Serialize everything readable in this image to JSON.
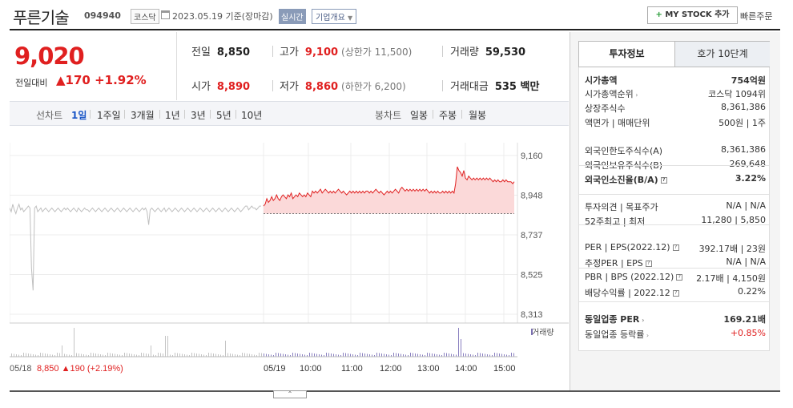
{
  "header": {
    "name": "푸른기술",
    "code": "094940",
    "market": "코스닥",
    "date": "2023.05.19 기준(장마감)",
    "live": "실시간",
    "corp_info": "기업개요",
    "mystock": "MY STOCK 추가",
    "quick": "빠른주문"
  },
  "price": {
    "now": "9,020",
    "change_label": "전일대비",
    "change": "▲170",
    "rate": "+1.92%"
  },
  "quote": {
    "prev_label": "전일",
    "prev": "8,850",
    "high_label": "고가",
    "high": "9,100",
    "high_limit": "(상한가 11,500)",
    "volume_label": "거래량",
    "volume": "59,530",
    "open_label": "시가",
    "open": "8,890",
    "low_label": "저가",
    "low": "8,860",
    "low_limit": "(하한가 6,200)",
    "amount_label": "거래대금",
    "amount": "535 백만"
  },
  "periods": {
    "line_label": "선차트",
    "items": [
      "1일",
      "1주일",
      "3개월",
      "1년",
      "3년",
      "5년",
      "10년"
    ],
    "selected": "1일",
    "candle_label": "봉차트",
    "candle_items": [
      "일봉",
      "주봉",
      "월봉"
    ]
  },
  "chart_data": {
    "type": "line",
    "y_ticks": [
      "9,160",
      "8,948",
      "8,737",
      "8,525",
      "8,313"
    ],
    "ylim": [
      8313,
      9160
    ],
    "baseline": 8850,
    "x_ticks": [
      "05/19",
      "10:00",
      "11:00",
      "12:00",
      "13:00",
      "14:00",
      "15:00"
    ],
    "prev_label": "05/18",
    "prev_summary": "8,850 ▲190 (+2.19%)",
    "volume_label": "거래량",
    "prev_series": [
      8880,
      8860,
      8900,
      8870,
      8850,
      8880,
      8900,
      8870,
      8880,
      8860,
      8870,
      8880,
      8890,
      8880,
      8560,
      8440,
      8880,
      8890,
      8860,
      8870,
      8880,
      8860,
      8870,
      8880,
      8870,
      8860,
      8870,
      8880,
      8870,
      8860,
      8870,
      8880,
      8870,
      8860,
      8870,
      8880,
      8870,
      8880,
      8870,
      8860,
      8870,
      8880,
      8870,
      8860,
      8880,
      8870,
      8860,
      8870,
      8880,
      8870,
      8870,
      8860,
      8870,
      8880,
      8870,
      8860,
      8870,
      8880,
      8870,
      8860,
      8870,
      8880,
      8870,
      8860,
      8870,
      8880,
      8870,
      8860,
      8870,
      8880,
      8870,
      8860,
      8870,
      8880,
      8870,
      8860,
      8870,
      8880,
      8870,
      8860,
      8870,
      8880,
      8870,
      8860,
      8870,
      8880,
      8870,
      8880,
      8860,
      8790,
      8870,
      8880,
      8870,
      8860,
      8870,
      8880,
      8870,
      8860,
      8870,
      8880,
      8860,
      8870,
      8880,
      8870,
      8860,
      8870,
      8880,
      8870,
      8860,
      8870,
      8880,
      8870,
      8860,
      8870,
      8880,
      8870,
      8860,
      8870,
      8880,
      8870,
      8860,
      8870,
      8880,
      8870,
      8860,
      8870,
      8880,
      8870,
      8860,
      8870,
      8880,
      8870,
      8860,
      8870,
      8880,
      8870,
      8860,
      8870,
      8880,
      8870,
      8860,
      8870,
      8880,
      8870,
      8860,
      8870,
      8880,
      8870,
      8860,
      8870,
      8880,
      8890,
      8890,
      8870,
      8880,
      8890,
      8880,
      8880,
      8870,
      8880,
      8890,
      8890
    ],
    "today_series": [
      8890,
      8900,
      8930,
      8910,
      8920,
      8940,
      8920,
      8930,
      8950,
      8930,
      8920,
      8940,
      8950,
      8940,
      8930,
      8950,
      8940,
      8960,
      8930,
      8940,
      8950,
      8940,
      8960,
      8950,
      8940,
      8950,
      8940,
      8960,
      8950,
      8940,
      8970,
      8960,
      8970,
      8960,
      8970,
      8980,
      8960,
      8970,
      8980,
      8970,
      8960,
      8970,
      8960,
      8970,
      8960,
      8970,
      8980,
      8970,
      8960,
      8970,
      8960,
      8950,
      8960,
      8970,
      8960,
      8970,
      8960,
      8970,
      8960,
      8970,
      8960,
      8970,
      8960,
      8970,
      8970,
      8960,
      8970,
      8960,
      8970,
      8980,
      8970,
      8960,
      8970,
      8960,
      8950,
      8960,
      8970,
      8960,
      8970,
      8960,
      8970,
      8980,
      8970,
      8960,
      8980,
      8990,
      8980,
      8970,
      8980,
      8970,
      8980,
      8970,
      8980,
      8970,
      8980,
      8970,
      8980,
      8970,
      8980,
      8970,
      8980,
      8970,
      8960,
      8970,
      8960,
      8970,
      8960,
      8970,
      8960,
      8960,
      8970,
      8960,
      8970,
      8960,
      8970,
      8960,
      8970,
      8960,
      9010,
      9100,
      9080,
      9070,
      9050,
      9080,
      9040,
      9030,
      9050,
      9040,
      9030,
      9040,
      9030,
      9040,
      9030,
      9040,
      9030,
      9040,
      9030,
      9040,
      9030,
      9040,
      9030,
      9020,
      9030,
      9020,
      9030,
      9020,
      9020,
      9030,
      9020,
      9030,
      9020,
      9020,
      9020,
      9010,
      9020
    ]
  },
  "panel": {
    "tab_on": "투자정보",
    "tab_off": "호가 10단계",
    "rows": [
      {
        "k": "시가총액",
        "v": "754억원",
        "bold": true
      },
      {
        "k": "시가총액순위",
        "v": "코스닥 1094위",
        "arrow": true
      },
      {
        "k": "상장주식수",
        "v": "8,361,386"
      },
      {
        "k": "액면가 | 매매단위",
        "v": "500원 | 1주"
      },
      {
        "k": "외국인한도주식수(A)",
        "v": "8,361,386"
      },
      {
        "k": "외국인보유주식수(B)",
        "v": "269,648"
      },
      {
        "k": "외국인소진율(B/A)",
        "v": "3.22%",
        "bold": true,
        "icon": true
      },
      {
        "k": "투자의견 | 목표주가",
        "v": "N/A | N/A"
      },
      {
        "k": "52주최고 | 최저",
        "v": "11,280 | 5,850"
      },
      {
        "k": "PER | EPS(2022.12)",
        "v": "392.17배 | 23원",
        "icon": true
      },
      {
        "k": "추정PER | EPS",
        "v": "N/A | N/A",
        "icon": true
      },
      {
        "k": "PBR | BPS (2022.12)",
        "v": "2.17배 | 4,150원",
        "icon": true
      },
      {
        "k": "배당수익률 | 2022.12",
        "v": "0.22%",
        "icon": true
      },
      {
        "k": "동일업종 PER",
        "v": "169.21배",
        "bold": true,
        "arrow": true
      },
      {
        "k": "동일업종 등락률",
        "v": "+0.85%",
        "arrow": true,
        "red": true
      }
    ]
  }
}
